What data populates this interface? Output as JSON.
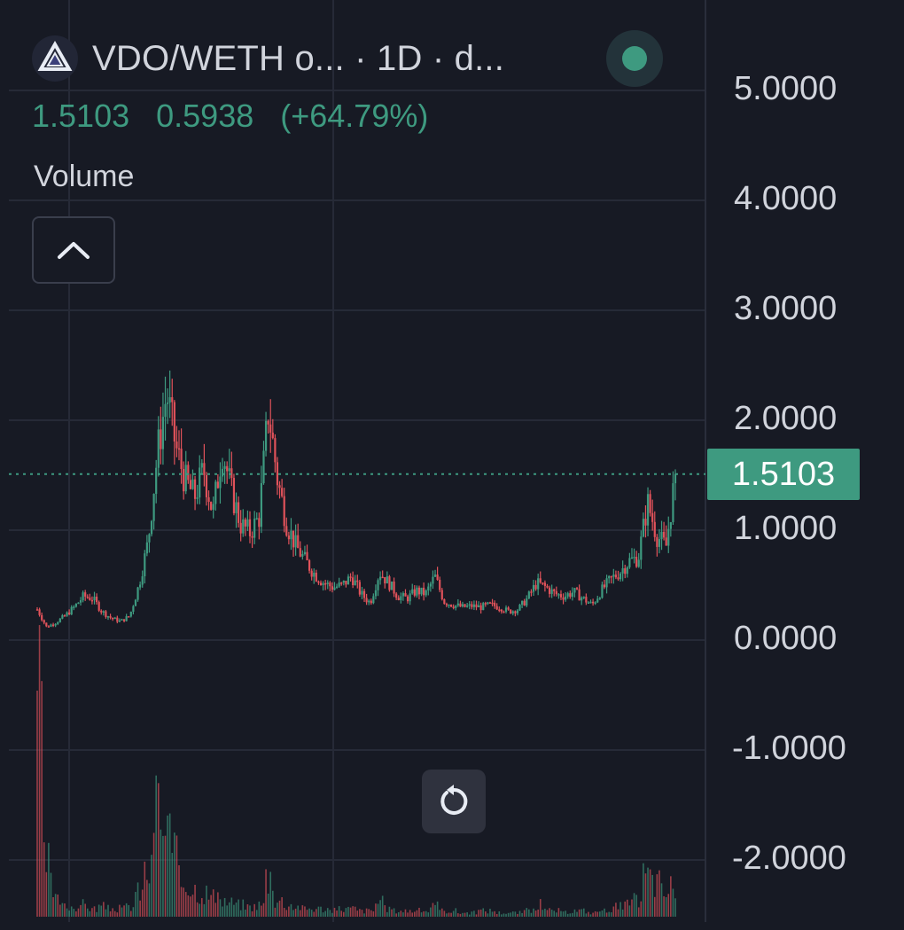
{
  "header": {
    "title": "VDO/WETH o...  · 1D · d...",
    "logo_icon": "vdo-logo-icon",
    "status_icon": "market-status-dot-icon",
    "price": "1.5103",
    "change": "0.5938",
    "change_pct": "(+64.79%)"
  },
  "volume_label": "Volume",
  "buttons": {
    "collapse_icon": "chevron-up-icon",
    "reset_icon": "reset-rotate-icon"
  },
  "current_price_label": "1.5103",
  "colors": {
    "background": "#171a24",
    "up": "#3e9a80",
    "down": "#e0525a",
    "grid": "#262a37",
    "text": "#d1d4dc"
  },
  "y_axis_labels": [
    "5.0000",
    "4.0000",
    "3.0000",
    "2.0000",
    "1.0000",
    "0.0000",
    "-1.0000",
    "-2.0000"
  ],
  "chart_data": {
    "type": "candlestick",
    "interval": "1D",
    "y_ticks": [
      5,
      4,
      3,
      2,
      1,
      0,
      -1,
      -2
    ],
    "ylim": [
      -2.5,
      5.5
    ],
    "current_price": 1.5103,
    "grid": true,
    "candles_close": [
      0.28,
      0.12,
      0.16,
      0.22,
      0.3,
      0.4,
      0.38,
      0.26,
      0.2,
      0.17,
      0.22,
      0.5,
      0.9,
      1.7,
      2.25,
      1.75,
      1.45,
      1.3,
      1.55,
      1.15,
      1.75,
      1.35,
      1.05,
      0.98,
      1.12,
      2.1,
      1.45,
      1.05,
      0.85,
      0.72,
      0.6,
      0.52,
      0.48,
      0.5,
      0.58,
      0.42,
      0.34,
      0.62,
      0.52,
      0.4,
      0.38,
      0.45,
      0.42,
      0.58,
      0.35,
      0.32,
      0.3,
      0.31,
      0.3,
      0.32,
      0.3,
      0.26,
      0.28,
      0.38,
      0.52,
      0.48,
      0.42,
      0.4,
      0.44,
      0.38,
      0.32,
      0.45,
      0.55,
      0.62,
      0.72,
      0.75,
      1.25,
      0.95,
      0.85,
      1.51
    ],
    "volume_relative": [
      1.0,
      0.25,
      0.08,
      0.05,
      0.05,
      0.06,
      0.04,
      0.05,
      0.04,
      0.04,
      0.05,
      0.12,
      0.22,
      0.55,
      0.4,
      0.28,
      0.18,
      0.14,
      0.12,
      0.1,
      0.08,
      0.07,
      0.06,
      0.05,
      0.06,
      0.2,
      0.08,
      0.06,
      0.05,
      0.04,
      0.04,
      0.04,
      0.03,
      0.04,
      0.04,
      0.03,
      0.03,
      0.07,
      0.04,
      0.03,
      0.03,
      0.03,
      0.03,
      0.05,
      0.03,
      0.03,
      0.02,
      0.02,
      0.03,
      0.03,
      0.02,
      0.02,
      0.02,
      0.03,
      0.06,
      0.03,
      0.03,
      0.02,
      0.03,
      0.03,
      0.02,
      0.03,
      0.04,
      0.05,
      0.06,
      0.08,
      0.2,
      0.17,
      0.12,
      0.15
    ]
  }
}
